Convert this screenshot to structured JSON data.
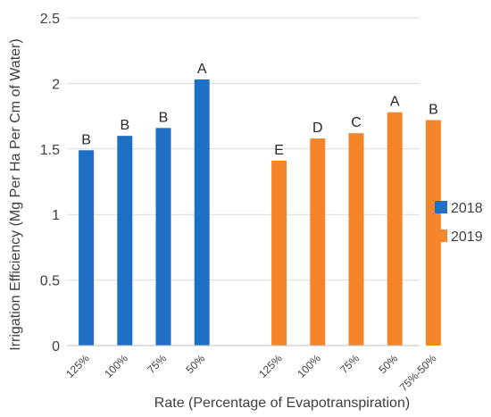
{
  "chart_data": {
    "type": "bar",
    "xlabel": "Rate (Percentage of Evapotranspiration)",
    "ylabel": "Irrigation Efficiency (Mg Per Ha Per Cm of Water)",
    "ylim": [
      0,
      2.5
    ],
    "yticks": [
      "0",
      "0.5",
      "1",
      "1.5",
      "2",
      "2.5"
    ],
    "grid": true,
    "legend_position": "right",
    "series": [
      {
        "name": "2018",
        "color": "#1F6FC5",
        "categories": [
          "125%",
          "100%",
          "75%",
          "50%"
        ],
        "values": [
          1.49,
          1.6,
          1.66,
          2.03
        ],
        "labels": [
          "B",
          "B",
          "B",
          "A"
        ]
      },
      {
        "name": "2019",
        "color": "#F5852A",
        "categories": [
          "125%",
          "100%",
          "75%",
          "50%",
          "75%-50%"
        ],
        "values": [
          1.41,
          1.58,
          1.62,
          1.78,
          1.72
        ],
        "labels": [
          "E",
          "D",
          "C",
          "A",
          "B"
        ]
      }
    ]
  }
}
